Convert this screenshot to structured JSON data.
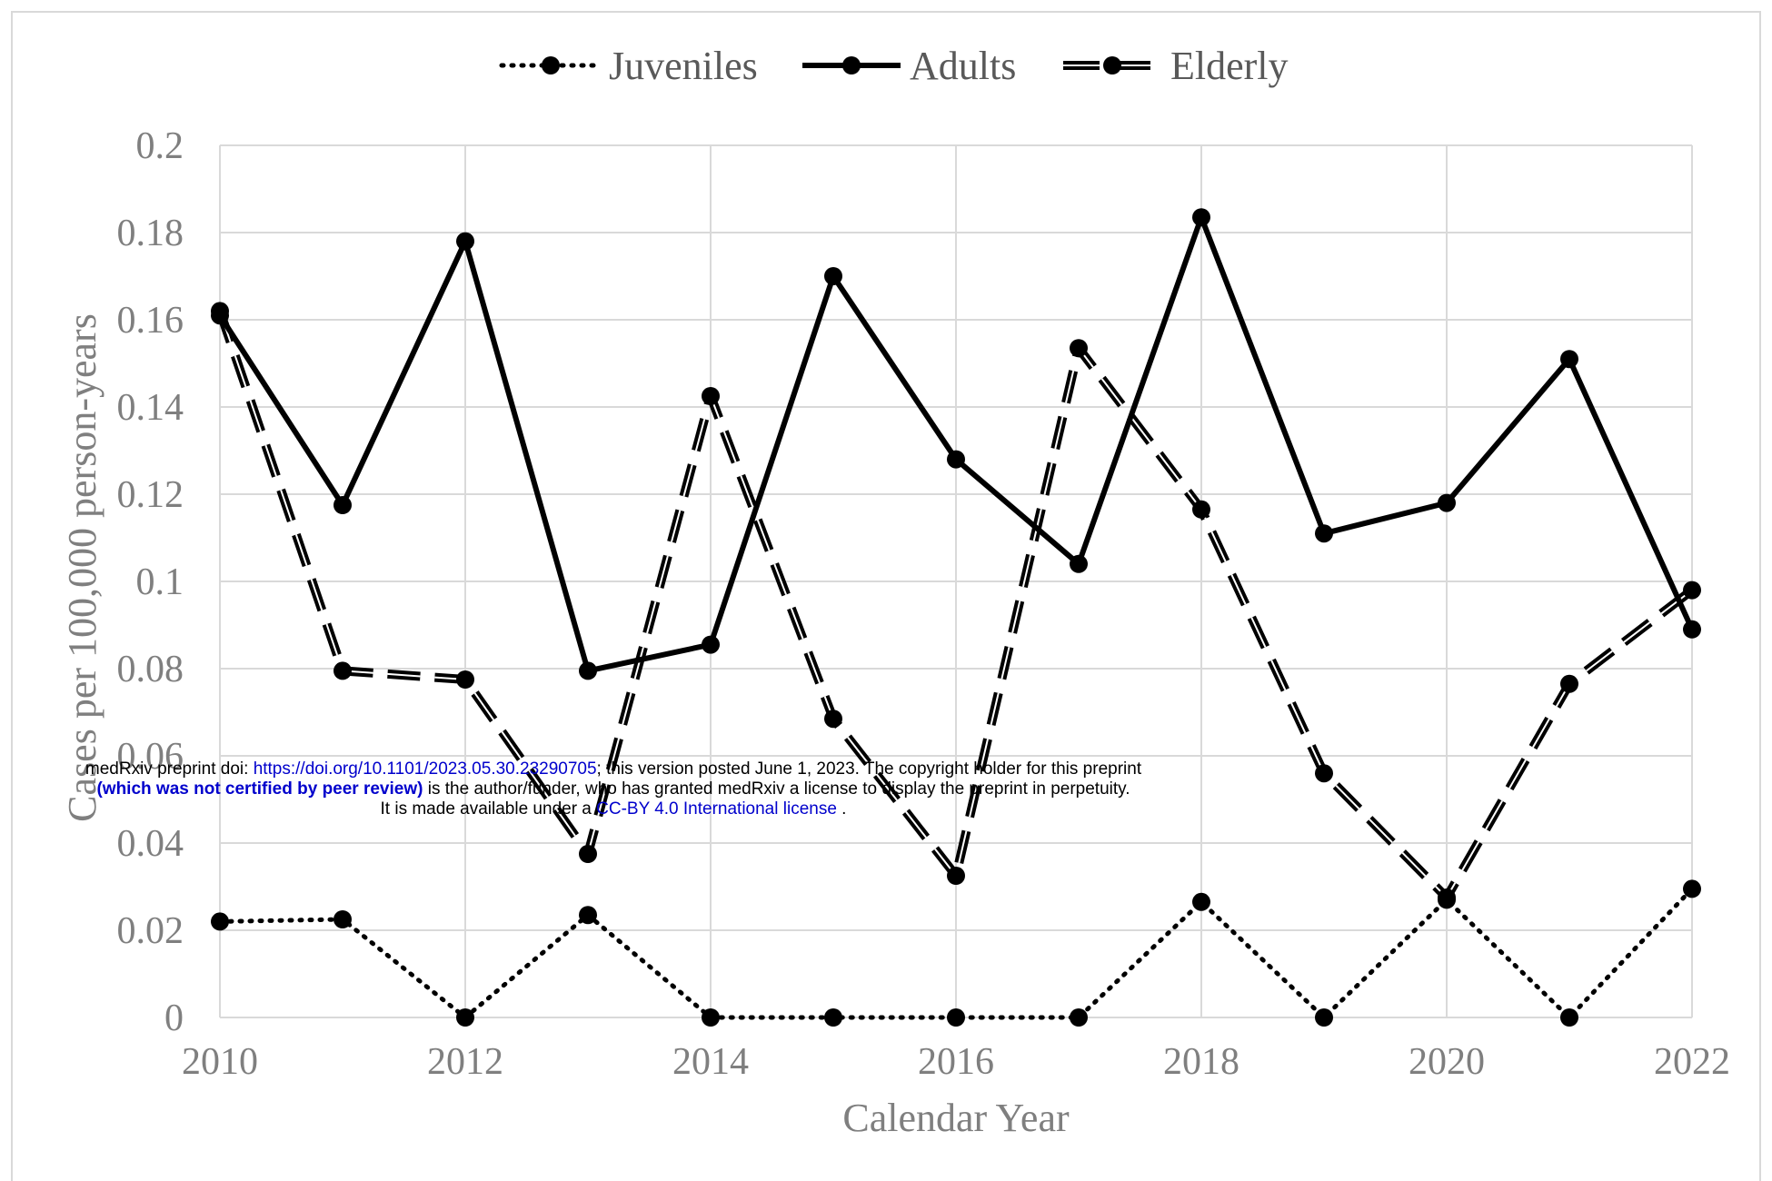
{
  "chart_data": {
    "type": "line",
    "title": "",
    "xlabel": "Calendar Year",
    "ylabel": "Cases per 100,000 person-years",
    "x": [
      2010,
      2011,
      2012,
      2013,
      2014,
      2015,
      2016,
      2017,
      2018,
      2019,
      2020,
      2021,
      2022
    ],
    "xticks": [
      "2010",
      "2012",
      "2014",
      "2016",
      "2018",
      "2020",
      "2022"
    ],
    "xlim": [
      2010,
      2022
    ],
    "yticks": [
      "0",
      "0.02",
      "0.04",
      "0.06",
      "0.08",
      "0.1",
      "0.12",
      "0.14",
      "0.16",
      "0.18",
      "0.2"
    ],
    "ylim": [
      0,
      0.2
    ],
    "grid": true,
    "legend_position": "top-center",
    "series": [
      {
        "name": "Juveniles",
        "style": "dotted",
        "values": [
          0.022,
          0.0225,
          0,
          0.0235,
          0,
          0,
          0,
          0,
          0.0265,
          0,
          0.027,
          0,
          0.0295
        ]
      },
      {
        "name": "Adults",
        "style": "solid",
        "values": [
          0.161,
          0.1175,
          0.178,
          0.0795,
          0.0855,
          0.17,
          0.128,
          0.104,
          0.1835,
          0.111,
          0.118,
          0.151,
          0.089
        ]
      },
      {
        "name": "Elderly",
        "style": "dashed",
        "values": [
          0.162,
          0.0795,
          0.0775,
          0.0375,
          0.1425,
          0.0685,
          0.0325,
          0.1535,
          0.1165,
          0.056,
          0.0275,
          0.0765,
          0.098
        ]
      }
    ],
    "colors": {
      "line": "#000000",
      "grid": "#d9d9d9",
      "axis_text": "#7f7f7f"
    }
  },
  "watermark": {
    "line1_prefix": "medRxiv preprint doi: ",
    "line1_link": "https://doi.org/10.1101/2023.05.30.23290705",
    "line1_suffix": "; this version posted June 1, 2023. The copyright holder for this preprint",
    "line2_bold": "(which was not certified by peer review)",
    "line2_suffix": " is the author/funder, who has granted medRxiv a license to display the preprint in perpetuity.",
    "line3_prefix": "It is made available under a ",
    "line3_link": "CC-BY 4.0 International license",
    "line3_suffix": " ."
  }
}
